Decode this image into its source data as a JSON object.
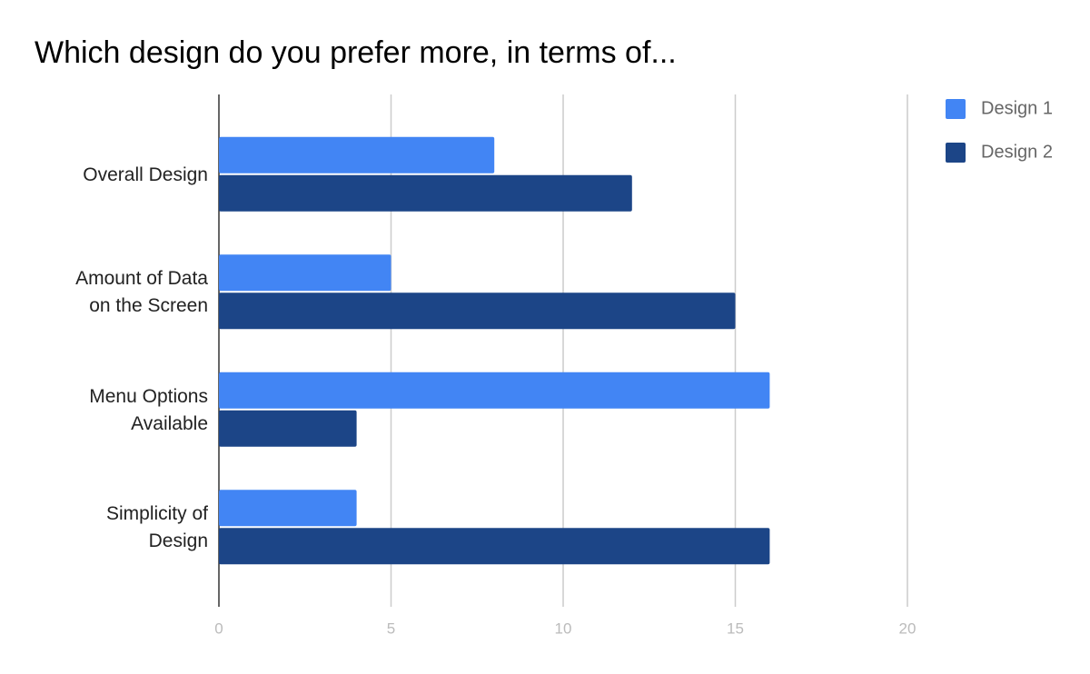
{
  "chart_data": {
    "type": "bar",
    "orientation": "horizontal",
    "title": "Which design do you prefer more, in terms of...",
    "categories": [
      "Overall Design",
      "Amount of Data on the Screen",
      "Menu Options Available",
      "Simplicity of Design"
    ],
    "series": [
      {
        "name": "Design 1",
        "color": "#4285f4",
        "values": [
          8,
          5,
          16,
          4
        ]
      },
      {
        "name": "Design 2",
        "color": "#1c4587",
        "values": [
          12,
          15,
          4,
          16
        ]
      }
    ],
    "xlim": [
      0,
      20
    ],
    "xticks": [
      0,
      5,
      10,
      15,
      20
    ],
    "grid": true,
    "legend": "top-right"
  }
}
